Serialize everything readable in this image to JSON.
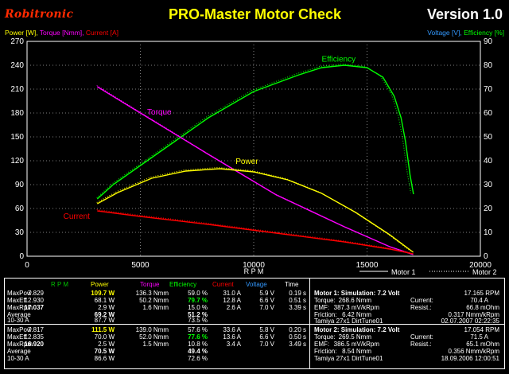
{
  "header": {
    "brand": "Robitronic",
    "title": "PRO-Master Motor Check",
    "version": "Version 1.0"
  },
  "legend": {
    "power": "Power [W],",
    "torque": "Torque [Nmm],",
    "current": "Current [A]",
    "voltage": "Voltage [V],",
    "efficiency": "Efficiency [%]"
  },
  "colors": {
    "power": "#ffff00",
    "torque": "#ff00ff",
    "current": "#ff0000",
    "efficiency": "#00ff00",
    "voltage": "#3399ff",
    "rpm": "#00c000",
    "grid": "#808080",
    "brand": "#ff2a00"
  },
  "chart_data": {
    "type": "line",
    "xlabel": "R P M",
    "x_ticks": [
      "0",
      "5000",
      "10000",
      "15000",
      "20000"
    ],
    "xlim": [
      0,
      20000
    ],
    "ylim_left": [
      0,
      270
    ],
    "ylim_right": [
      0,
      90
    ],
    "y_left_ticks": [
      "0",
      "30",
      "60",
      "90",
      "120",
      "150",
      "180",
      "210",
      "240",
      "270"
    ],
    "y_right_ticks": [
      "0",
      "10",
      "20",
      "30",
      "40",
      "50",
      "60",
      "70",
      "80",
      "90"
    ],
    "grid": true,
    "legend_items": [
      "Motor 1",
      "Motor 2"
    ],
    "series": [
      {
        "name": "Efficiency",
        "axis": "right",
        "color": "#00ff00",
        "x": [
          3100,
          3800,
          5000,
          6500,
          8000,
          10000,
          12000,
          13000,
          14000,
          15000,
          15700,
          16200,
          16500,
          16700,
          16900,
          17050
        ],
        "y": [
          24,
          30,
          38,
          48,
          58,
          69,
          76,
          79,
          80,
          79,
          75,
          67,
          58,
          48,
          34,
          26
        ]
      },
      {
        "name": "Torque",
        "axis": "left",
        "color": "#ff00ff",
        "x": [
          3100,
          5000,
          8000,
          11000,
          14000,
          16000,
          17037
        ],
        "y": [
          213,
          180,
          128,
          77,
          37,
          12,
          2
        ]
      },
      {
        "name": "Power",
        "axis": "left",
        "color": "#ffff00",
        "x": [
          3100,
          4000,
          5500,
          7000,
          8500,
          10000,
          11500,
          13000,
          14500,
          16000,
          17037
        ],
        "y": [
          66,
          80,
          98,
          107,
          110,
          106,
          96,
          79,
          55,
          27,
          5
        ]
      },
      {
        "name": "Current",
        "axis": "left",
        "color": "#ff0000",
        "x": [
          3100,
          5000,
          8000,
          11000,
          14000,
          16000,
          17037
        ],
        "y": [
          57,
          50,
          40,
          29,
          18,
          9,
          3
        ]
      }
    ],
    "labels": {
      "efficiency": "Efficiency",
      "torque": "Torque",
      "power": "Power",
      "current": "Current"
    }
  },
  "table": {
    "headers": {
      "rpm": "R P M",
      "power": "Power",
      "torque": "Torque",
      "efficiency": "Efficiency",
      "current": "Current",
      "voltage": "Voltage",
      "time": "Time"
    },
    "motors": [
      {
        "rows": [
          {
            "label": "MaxPow",
            "rpm": "7.829",
            "power": "109.7 W",
            "torque": "136.3 Nmm",
            "eff": "59.0 %",
            "current": "31.0 A",
            "voltage": "5.9 V",
            "time": "0.19 s"
          },
          {
            "label": "MaxEff",
            "rpm": "12.930",
            "power": "68.1 W",
            "torque": "50.2 Nmm",
            "eff": "79.7 %",
            "current": "12.8 A",
            "voltage": "6.6 V",
            "time": "0.51 s"
          },
          {
            "label": "MaxRpm",
            "rpm": "17.037",
            "power": "2.9 W",
            "torque": "1.6 Nmm",
            "eff": "15.0 %",
            "current": "2.6 A",
            "voltage": "7.0 V",
            "time": "3.39 s"
          },
          {
            "label": "Average",
            "rpm": "",
            "power": "69.2 W",
            "torque": "",
            "eff": "51.2 %",
            "current": "",
            "voltage": "",
            "time": ""
          },
          {
            "label": "10-30 A",
            "rpm": "",
            "power": "87.7 W",
            "torque": "",
            "eff": "73.5 %",
            "current": "",
            "voltage": "",
            "time": ""
          }
        ],
        "info": {
          "line1": "Motor 1: Simulation: 7.2 Volt",
          "rpm": "17.165 RPM",
          "torque_label": "Torque:",
          "torque": "268.6 Nmm",
          "current_label": "Current:",
          "current": "70.4 A",
          "emf_label": "EMF:",
          "emf": "387.3 mV/kRpm",
          "resist_label": "Resist.:",
          "resist": "66.8 mOhm",
          "friction_label": "Friction:",
          "friction": "6.42 Nmm",
          "nmm": "0.317 Nmm/kRpm",
          "name": "Tamiya 27x1 DirtTune01",
          "date": "02.07.2007 02:22:35"
        }
      },
      {
        "rows": [
          {
            "label": "MaxPow",
            "rpm": "7.817",
            "power": "111.5 W",
            "torque": "139.0 Nmm",
            "eff": "57.6 %",
            "current": "33.6 A",
            "voltage": "5.8 V",
            "time": "0.20 s"
          },
          {
            "label": "MaxEff",
            "rpm": "12.835",
            "power": "70.0 W",
            "torque": "52.0 Nmm",
            "eff": "77.6 %",
            "current": "13.6 A",
            "voltage": "6.6 V",
            "time": "0.50 s"
          },
          {
            "label": "MaxRpm",
            "rpm": "16.920",
            "power": "2.5 W",
            "torque": "1.5 Nmm",
            "eff": "10.8 %",
            "current": "3.4 A",
            "voltage": "7.0 V",
            "time": "3.49 s"
          },
          {
            "label": "Average",
            "rpm": "",
            "power": "70.5 W",
            "torque": "",
            "eff": "49.4 %",
            "current": "",
            "voltage": "",
            "time": ""
          },
          {
            "label": "10-30 A",
            "rpm": "",
            "power": "86.6 W",
            "torque": "",
            "eff": "72.6 %",
            "current": "",
            "voltage": "",
            "time": ""
          }
        ],
        "info": {
          "line1": "Motor 2: Simulation: 7.2 Volt",
          "rpm": "17.054 RPM",
          "torque_label": "Torque:",
          "torque": "269.5 Nmm",
          "current_label": "Current:",
          "current": "71.5 A",
          "emf_label": "EMF:",
          "emf": "386.5 mV/kRpm",
          "resist_label": "Resist.:",
          "resist": "65.1 mOhm",
          "friction_label": "Friction:",
          "friction": "8.54 Nmm",
          "nmm": "0.356 Nmm/kRpm",
          "name": "Tamiya 27x1 DirtTune01",
          "date": "18.09.2006 12:00:51"
        }
      }
    ]
  }
}
